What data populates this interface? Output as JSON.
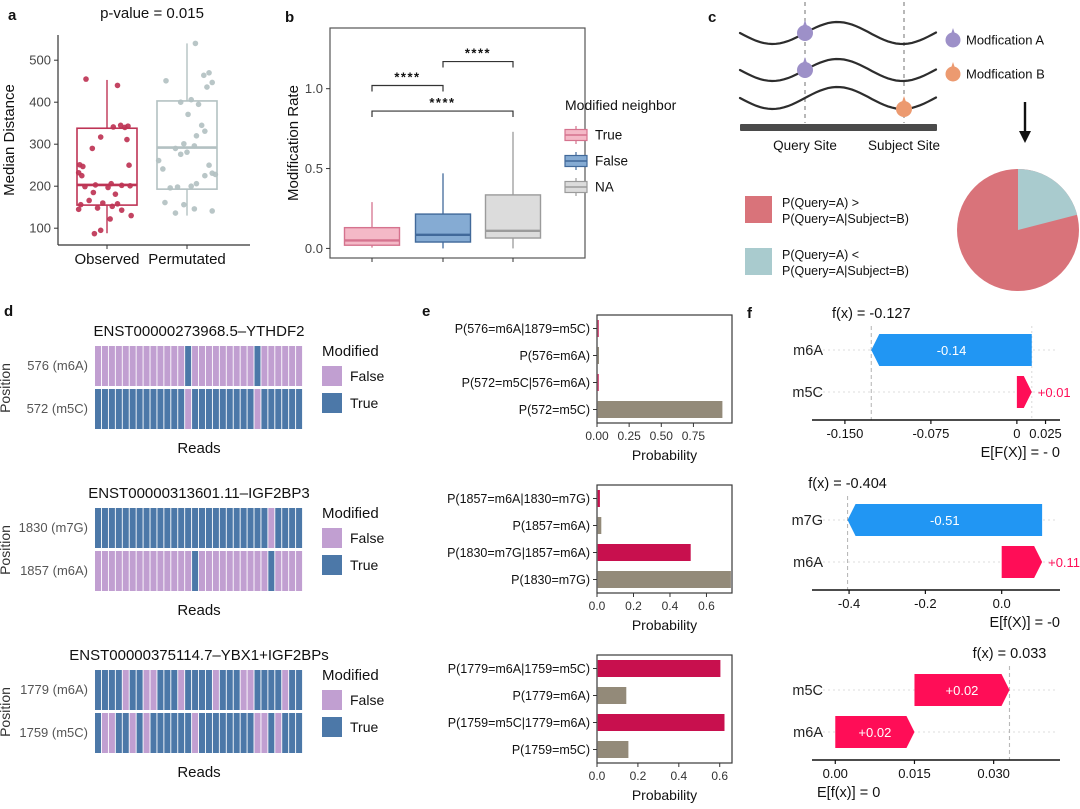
{
  "chart_data": {
    "panel_a": {
      "type": "boxplot",
      "label": "a",
      "title": "p-value = 0.015",
      "ylabel": "Median Distance",
      "yticks": [
        100,
        200,
        300,
        400,
        500
      ],
      "ylim": [
        60,
        560
      ],
      "categories": [
        "Observed",
        "Permutated"
      ],
      "boxes": [
        {
          "category": "Observed",
          "color": "#BE3455",
          "whisker_low": 88,
          "q1": 155,
          "median": 203,
          "q3": 338,
          "whisker_high": 453,
          "points": [
            [
              -0.2,
              455
            ],
            [
              0.1,
              440
            ],
            [
              0.13,
              345
            ],
            [
              0.2,
              343
            ],
            [
              0.06,
              341
            ],
            [
              0.17,
              340
            ],
            [
              -0.06,
              317
            ],
            [
              0.19,
              311
            ],
            [
              -0.14,
              290
            ],
            [
              -0.26,
              251
            ],
            [
              0.21,
              250
            ],
            [
              -0.23,
              247
            ],
            [
              -0.27,
              232
            ],
            [
              -0.24,
              225
            ],
            [
              0.04,
              206
            ],
            [
              -0.11,
              203
            ],
            [
              0.14,
              202
            ],
            [
              0.22,
              201
            ],
            [
              -0.21,
              199
            ],
            [
              0.01,
              197
            ],
            [
              -0.13,
              185
            ],
            [
              0.08,
              181
            ],
            [
              -0.17,
              166
            ],
            [
              -0.04,
              160
            ],
            [
              0.1,
              158
            ],
            [
              -0.25,
              156
            ],
            [
              0.05,
              152
            ],
            [
              -0.09,
              148
            ],
            [
              -0.27,
              145
            ],
            [
              0.14,
              143
            ],
            [
              0.23,
              130
            ],
            [
              0.03,
              122
            ],
            [
              -0.06,
              95
            ],
            [
              -0.12,
              87
            ]
          ]
        },
        {
          "category": "Permutated",
          "color": "#B3C1C2",
          "whisker_low": 130,
          "q1": 193,
          "median": 292,
          "q3": 403,
          "whisker_high": 540,
          "points": [
            [
              0.08,
              540
            ],
            [
              0.21,
              470
            ],
            [
              0.16,
              464
            ],
            [
              -0.2,
              451
            ],
            [
              0.24,
              447
            ],
            [
              0.19,
              436
            ],
            [
              0.04,
              406
            ],
            [
              -0.06,
              400
            ],
            [
              0.11,
              395
            ],
            [
              0.01,
              371
            ],
            [
              0.14,
              345
            ],
            [
              0.17,
              331
            ],
            [
              0.09,
              320
            ],
            [
              -0.03,
              301
            ],
            [
              0.07,
              296
            ],
            [
              -0.11,
              290
            ],
            [
              0.0,
              281
            ],
            [
              -0.06,
              276
            ],
            [
              -0.27,
              261
            ],
            [
              0.21,
              250
            ],
            [
              -0.23,
              241
            ],
            [
              0.24,
              231
            ],
            [
              0.27,
              228
            ],
            [
              0.17,
              225
            ],
            [
              0.09,
              206
            ],
            [
              0.04,
              200
            ],
            [
              -0.09,
              198
            ],
            [
              -0.16,
              196
            ],
            [
              -0.21,
              161
            ],
            [
              -0.03,
              156
            ],
            [
              0.07,
              146
            ],
            [
              0.24,
              141
            ],
            [
              -0.11,
              136
            ]
          ]
        }
      ]
    },
    "panel_b": {
      "type": "boxplot",
      "label": "b",
      "ylabel": "Modification Rate",
      "yticks": [
        0.0,
        0.5,
        1.0
      ],
      "ylim": [
        -0.06,
        1.38
      ],
      "legend": {
        "title": "Modified neighbor",
        "entries": [
          {
            "label": "True",
            "fill": "#F4B9C7",
            "stroke": "#D5738E"
          },
          {
            "label": "False",
            "fill": "#85ABD3",
            "stroke": "#41699A"
          },
          {
            "label": "NA",
            "fill": "#DCDCDC",
            "stroke": "#9B9B9B"
          }
        ]
      },
      "boxes": [
        {
          "category": "True",
          "fill": "#F4B9C7",
          "stroke": "#D5738E",
          "whisker_low": 0.005,
          "q1": 0.02,
          "median": 0.05,
          "q3": 0.13,
          "whisker_high": 0.29
        },
        {
          "category": "False",
          "fill": "#85ABD3",
          "stroke": "#41699A",
          "whisker_low": 0.0,
          "q1": 0.04,
          "median": 0.085,
          "q3": 0.215,
          "whisker_high": 0.47
        },
        {
          "category": "NA",
          "fill": "#DCDCDC",
          "stroke": "#9B9B9B",
          "whisker_low": 0.0,
          "q1": 0.065,
          "median": 0.11,
          "q3": 0.335,
          "whisker_high": 0.73
        }
      ],
      "significance": [
        {
          "from": 0,
          "to": 1,
          "y": 1.02,
          "label": "****"
        },
        {
          "from": 1,
          "to": 2,
          "y": 1.17,
          "label": "****"
        },
        {
          "from": 0,
          "to": 2,
          "y": 0.86,
          "label": "****"
        }
      ]
    },
    "panel_c": {
      "type": "diagram-pie",
      "label": "c",
      "site_labels": [
        "Query Site",
        "Subject Site"
      ],
      "mod_legend": [
        {
          "label": "Modfication A",
          "color": "#9D90C8"
        },
        {
          "label": "Modfication B",
          "color": "#EC9A70"
        }
      ],
      "legend": [
        {
          "line1": "P(Query=A) >",
          "line2": "P(Query=A|Subject=B)",
          "color": "#D9737A"
        },
        {
          "line1": "P(Query=A) <",
          "line2": "P(Query=A|Subject=B)",
          "color": "#A9CBCE"
        }
      ],
      "pie": {
        "slices": [
          {
            "label": "P(Query=A) > P(Query=A|Subject=B)",
            "value": 0.79,
            "color": "#D9737A"
          },
          {
            "label": "P(Query=A) < P(Query=A|Subject=B)",
            "value": 0.21,
            "color": "#A9CBCE"
          }
        ]
      }
    },
    "panel_d": {
      "type": "heatmap",
      "label": "d",
      "xlabel": "Reads",
      "ylabel": "Position",
      "legend": {
        "title": "Modified",
        "entries": [
          {
            "label": "False",
            "color": "#C19FD1"
          },
          {
            "label": "True",
            "color": "#4C78A8"
          }
        ]
      },
      "blocks": [
        {
          "title": "ENST00000273968.5–YTHDF2",
          "rows": [
            {
              "label": "576 (m6A)",
              "cells": "FFFFFFFFFFFFFTFFFFFFFFFTFFFFFF"
            },
            {
              "label": "572 (m5C)",
              "cells": "TTTTTTTTTTTTTFTTTTTTTTTFTTTTTT"
            }
          ]
        },
        {
          "title": "ENST00000313601.11–IGF2BP3",
          "rows": [
            {
              "label": "1830 (m7G)",
              "cells": "TTTTTTTTTTTTTTTTTTTTTTTTTFTTTT"
            },
            {
              "label": "1857 (m6A)",
              "cells": "FFFFFFFFFFFFFFTFFFFFFFFFFTFFFF"
            }
          ]
        },
        {
          "title": "ENST00000375114.7–YBX1+IGF2BPs",
          "rows": [
            {
              "label": "1779 (m6A)",
              "cells": "TTTTFTTFFTTTFTTTTFTTTFFTTTTFTT"
            },
            {
              "label": "1759 (m5C)",
              "cells": "TFFTTFTFTTTTTTFTTTTTTTTFFTFTTT"
            }
          ]
        }
      ]
    },
    "panel_e": {
      "type": "bar",
      "label": "e",
      "xlabel": "Probability",
      "charts": [
        {
          "categories": [
            "P(576=m6A|1879=m5C)",
            "P(576=m6A)",
            "P(572=m5C|576=m6A)",
            "P(572=m5C)"
          ],
          "values": [
            0.004,
            0.01,
            0.004,
            0.97
          ],
          "colors": [
            "#C8104E",
            "#938A79",
            "#C8104E",
            "#938A79"
          ],
          "xlim": 1.05,
          "xticks": [
            {
              "v": 0,
              "t": "0.00"
            },
            {
              "v": 0.25,
              "t": "0.25"
            },
            {
              "v": 0.5,
              "t": "0.50"
            },
            {
              "v": 0.75,
              "t": "0.75"
            }
          ]
        },
        {
          "categories": [
            "P(1857=m6A|1830=m7G)",
            "P(1857=m6A)",
            "P(1830=m7G|1857=m6A)",
            "P(1830=m7G)"
          ],
          "values": [
            0.012,
            0.02,
            0.51,
            0.73
          ],
          "colors": [
            "#C8104E",
            "#938A79",
            "#C8104E",
            "#938A79"
          ],
          "xlim": 0.74,
          "xticks": [
            {
              "v": 0,
              "t": "0.0"
            },
            {
              "v": 0.2,
              "t": "0.2"
            },
            {
              "v": 0.4,
              "t": "0.4"
            },
            {
              "v": 0.6,
              "t": "0.6"
            }
          ]
        },
        {
          "categories": [
            "P(1779=m6A|1759=m5C)",
            "P(1779=m6A)",
            "P(1759=m5C|1779=m6A)",
            "P(1759=m5C)"
          ],
          "values": [
            0.6,
            0.14,
            0.62,
            0.15
          ],
          "colors": [
            "#C8104E",
            "#938A79",
            "#C8104E",
            "#938A79"
          ],
          "xlim": 0.66,
          "xticks": [
            {
              "v": 0,
              "t": "0.0"
            },
            {
              "v": 0.2,
              "t": "0.2"
            },
            {
              "v": 0.4,
              "t": "0.4"
            },
            {
              "v": 0.6,
              "t": "0.6"
            }
          ]
        }
      ]
    },
    "panel_f": {
      "type": "shap-waterfall",
      "label": "f",
      "charts": [
        {
          "title": "f(x) = -0.127",
          "fx": -0.127,
          "guide_x": 0.013,
          "xlim": [
            -0.163,
            0.035
          ],
          "rows": [
            {
              "label": "m6A",
              "value_label": "-0.14",
              "color": "#2196F3",
              "from": 0.013,
              "to": -0.127,
              "direction": "left",
              "label_pos": "inside"
            },
            {
              "label": "m5C",
              "value_label": "+0.01",
              "color": "#FF0D57",
              "from": 0.0,
              "to": 0.013,
              "direction": "right",
              "label_pos": "outside"
            }
          ],
          "xticks": [
            {
              "v": -0.15,
              "t": "-0.150"
            },
            {
              "v": -0.075,
              "t": "-0.075"
            },
            {
              "v": 0,
              "t": "0"
            },
            {
              "v": 0.025,
              "t": "0.025"
            }
          ],
          "expected_label": "E[F(X)] = - 0",
          "expected_align": "right"
        },
        {
          "title": "f(x) = -0.404",
          "fx": -0.404,
          "xlim": [
            -0.45,
            0.145
          ],
          "rows": [
            {
              "label": "m7G",
              "value_label": "-0.51",
              "color": "#2196F3",
              "from": 0.106,
              "to": -0.404,
              "direction": "left",
              "label_pos": "inside"
            },
            {
              "label": "m6A",
              "value_label": "+0.11",
              "color": "#FF0D57",
              "from": 0.0,
              "to": 0.106,
              "direction": "right",
              "label_pos": "outside"
            }
          ],
          "xticks": [
            {
              "v": -0.4,
              "t": "-0.4"
            },
            {
              "v": -0.2,
              "t": "-0.2"
            },
            {
              "v": 0,
              "t": "0.0"
            }
          ],
          "expected_label": "E[f(X)] = -0",
          "expected_align": "right"
        },
        {
          "title": "f(x) = 0.033",
          "fx": 0.033,
          "xlim": [
            -0.001,
            0.042
          ],
          "rows": [
            {
              "label": "m5C",
              "value_label": "+0.02",
              "color": "#FF0D57",
              "from": 0.015,
              "to": 0.033,
              "direction": "right",
              "label_pos": "inside"
            },
            {
              "label": "m6A",
              "value_label": "+0.02",
              "color": "#FF0D57",
              "from": 0.0,
              "to": 0.015,
              "direction": "right",
              "label_pos": "inside"
            }
          ],
          "xticks": [
            {
              "v": 0,
              "t": "0.00"
            },
            {
              "v": 0.015,
              "t": "0.015"
            },
            {
              "v": 0.03,
              "t": "0.030"
            }
          ],
          "expected_label": "E[f(x)] = 0",
          "expected_align": "left"
        }
      ]
    }
  }
}
